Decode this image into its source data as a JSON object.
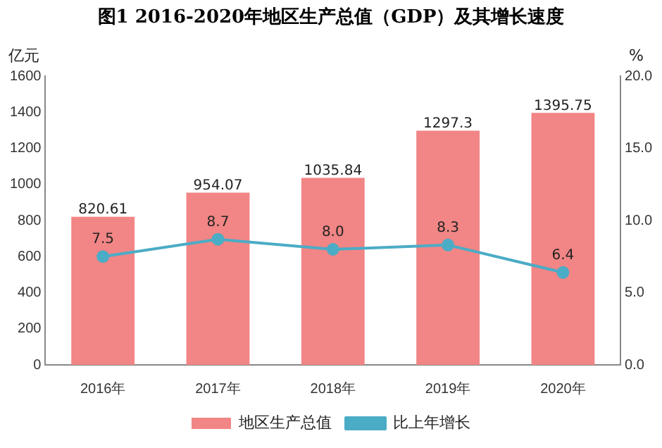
{
  "chart_data": {
    "type": "bar",
    "title": "图1  2016-2020年地区生产总值（GDP）及其增长速度",
    "ylabel": "亿元",
    "y2label": "%",
    "categories": [
      "2016年",
      "2017年",
      "2018年",
      "2019年",
      "2020年"
    ],
    "series": [
      {
        "name": "地区生产总值",
        "color": "#f28585",
        "values": [
          820.61,
          954.07,
          1035.84,
          1297.3,
          1395.75
        ],
        "value_labels": [
          "820.61",
          "954.07",
          "1035.84",
          "1297.3",
          "1395.75"
        ]
      },
      {
        "name": "比上年增长",
        "type": "line",
        "axis": "y2",
        "color": "#4bacc6",
        "values": [
          7.5,
          8.7,
          8.0,
          8.3,
          6.4
        ],
        "value_labels": [
          "7.5",
          "8.7",
          "8.0",
          "8.3",
          "6.4"
        ]
      }
    ],
    "ylim": [
      0,
      1600
    ],
    "yticks": [
      0,
      200,
      400,
      600,
      800,
      1000,
      1200,
      1400,
      1600
    ],
    "y2lim": [
      0,
      20
    ],
    "y2ticks": [
      {
        "value": 0,
        "label": "0.0"
      },
      {
        "value": 5,
        "label": "5.0"
      },
      {
        "value": 10,
        "label": "10.0"
      },
      {
        "value": 15,
        "label": "15.0"
      },
      {
        "value": 20,
        "label": "20.0"
      }
    ],
    "grid": false,
    "legend": "bottom",
    "marker": "circle",
    "line_style": "solid"
  }
}
